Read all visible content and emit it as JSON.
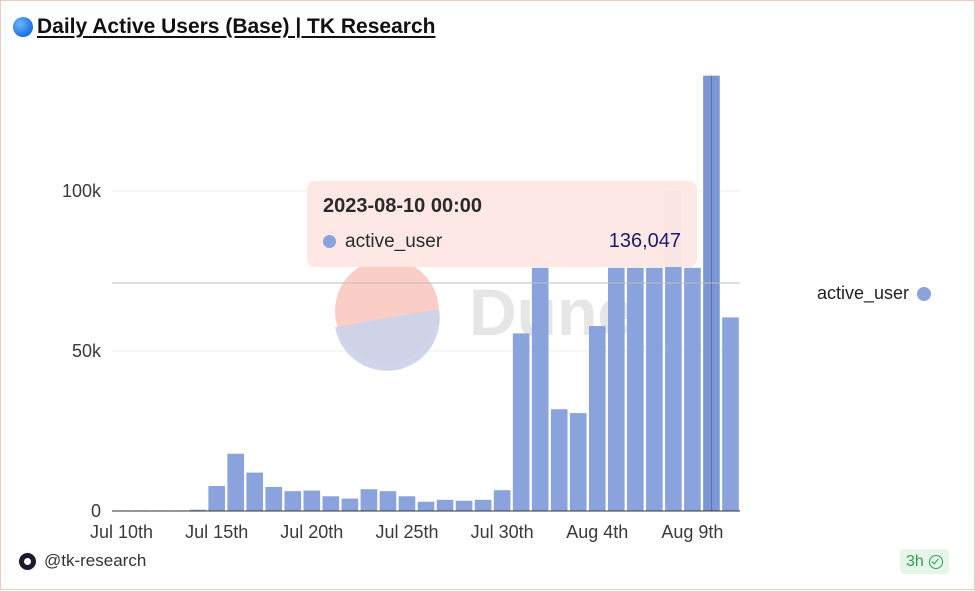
{
  "title": "Daily Active Users (Base) | TK Research",
  "author": "@tk-research",
  "freshness_badge": "3h",
  "watermark": "Dune",
  "colors": {
    "bar": "#8aa3dd",
    "bar_highlight": "#7d96d6",
    "grid": "#ececec",
    "crosshair": "#bdbdbd"
  },
  "tooltip": {
    "date": "2023-08-10 00:00",
    "series": "active_user",
    "value": "136,047"
  },
  "chart_data": {
    "type": "bar",
    "series": [
      {
        "name": "active_user",
        "x": [
          "2023-07-10",
          "2023-07-11",
          "2023-07-12",
          "2023-07-13",
          "2023-07-14",
          "2023-07-15",
          "2023-07-16",
          "2023-07-17",
          "2023-07-18",
          "2023-07-19",
          "2023-07-20",
          "2023-07-21",
          "2023-07-22",
          "2023-07-23",
          "2023-07-24",
          "2023-07-25",
          "2023-07-26",
          "2023-07-27",
          "2023-07-28",
          "2023-07-29",
          "2023-07-30",
          "2023-07-31",
          "2023-08-01",
          "2023-08-02",
          "2023-08-03",
          "2023-08-04",
          "2023-08-05",
          "2023-08-06",
          "2023-08-07",
          "2023-08-08",
          "2023-08-09",
          "2023-08-10",
          "2023-08-11"
        ],
        "values": [
          50,
          60,
          80,
          150,
          400,
          7800,
          17900,
          12000,
          7500,
          6200,
          6400,
          4600,
          3900,
          6800,
          6200,
          4600,
          2900,
          3500,
          3200,
          3500,
          6500,
          55500,
          76000,
          31800,
          30600,
          57800,
          76000,
          76000,
          76000,
          100000,
          76000,
          136047,
          60500
        ]
      }
    ],
    "x_ticks": [
      "Jul 10th",
      "Jul 15th",
      "Jul 20th",
      "Jul 25th",
      "Jul 30th",
      "Aug 4th",
      "Aug 9th"
    ],
    "y_ticks": [
      "0",
      "50k",
      "100k"
    ],
    "ylim": [
      0,
      140000
    ],
    "grid": true,
    "legend": "right",
    "highlighted_point": "2023-08-10"
  }
}
